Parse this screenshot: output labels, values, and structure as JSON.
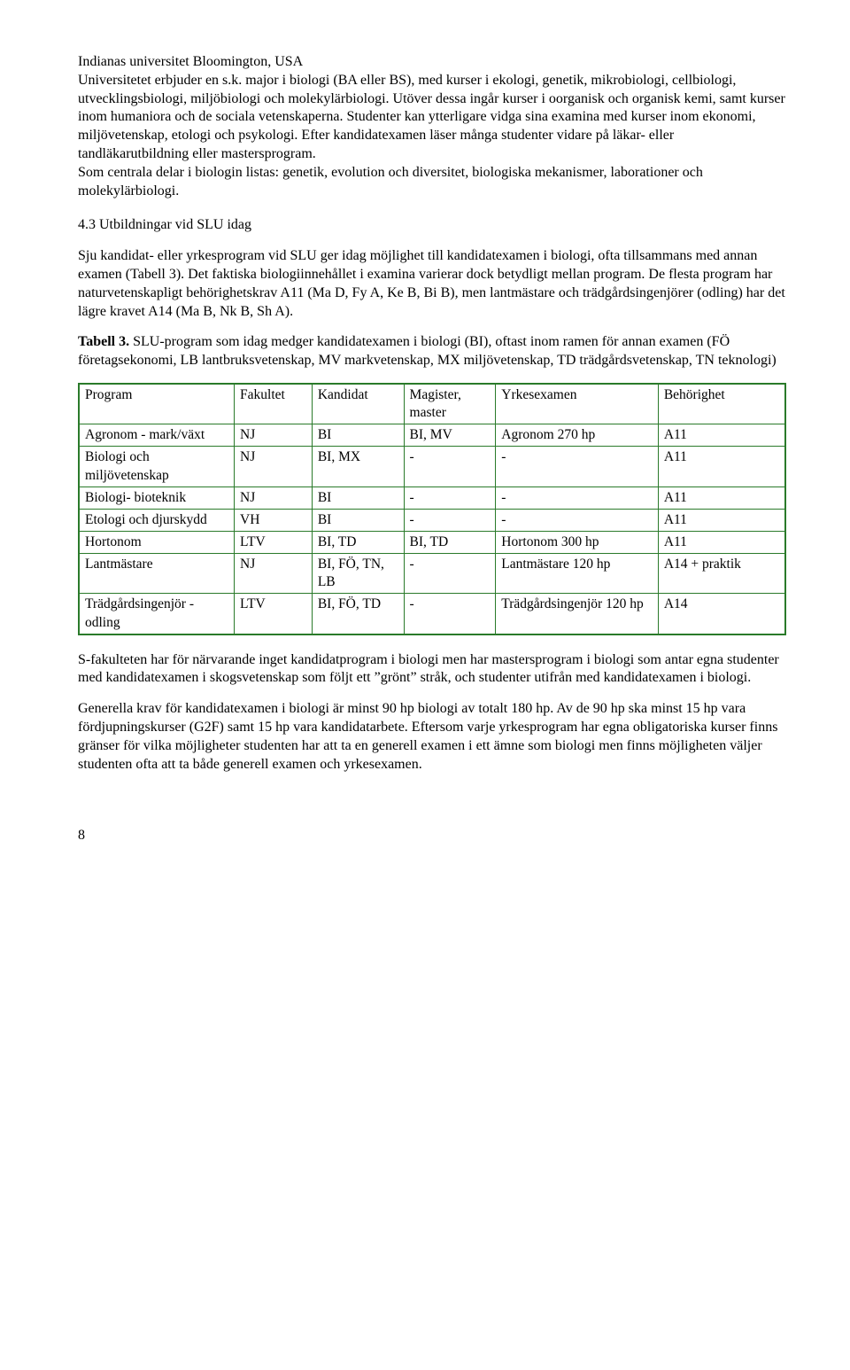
{
  "para1": "Indianas universitet Bloomington, USA\nUniversitetet erbjuder en s.k. major i biologi (BA eller BS), med kurser i ekologi, genetik, mikrobiologi, cellbiologi, utvecklingsbiologi, miljöbiologi och molekylärbiologi. Utöver dessa ingår kurser i oorganisk och organisk kemi, samt kurser inom humaniora och de sociala vetenskaperna. Studenter kan ytterligare vidga sina examina med kurser inom ekonomi, miljövetenskap, etologi och psykologi. Efter kandidatexamen läser många studenter vidare på läkar- eller tandläkarutbildning eller mastersprogram.\nSom centrala delar i biologin listas: genetik, evolution och diversitet, biologiska mekanismer, laborationer och molekylärbiologi.",
  "heading43": "4.3 Utbildningar vid SLU idag",
  "para2": "Sju kandidat- eller yrkesprogram vid SLU ger idag möjlighet till kandidatexamen i biologi, ofta tillsammans med annan examen (Tabell 3). Det faktiska biologiinnehållet i examina varierar dock betydligt mellan program. De flesta program har naturvetenskapligt behörighetskrav A11 (Ma D, Fy A, Ke B, Bi B), men lantmästare och trädgårdsingenjörer (odling) har det lägre kravet A14 (Ma B, Nk B, Sh A).",
  "table_caption_bold": "Tabell 3.",
  "table_caption_rest": " SLU-program som idag medger kandidatexamen i biologi (BI), oftast inom ramen för annan examen (FÖ företagsekonomi, LB lantbruksvetenskap, MV markvetenskap, MX miljövetenskap, TD trädgårdsvetenskap, TN teknologi)",
  "table": {
    "border_color": "#2a7a2a",
    "columns": [
      "Program",
      "Fakultet",
      "Kandidat",
      "Magister, master",
      "Yrkesexamen",
      "Behörighet"
    ],
    "col_widths_pct": [
      22,
      11,
      13,
      13,
      23,
      18
    ],
    "rows": [
      [
        "Agronom - mark/växt",
        "NJ",
        "BI",
        "BI, MV",
        "Agronom 270 hp",
        "A11"
      ],
      [
        "Biologi och miljövetenskap",
        "NJ",
        "BI, MX",
        "-",
        "-",
        "A11"
      ],
      [
        "Biologi- bioteknik",
        "NJ",
        "BI",
        "-",
        "-",
        "A11"
      ],
      [
        "Etologi och djurskydd",
        "VH",
        "BI",
        "-",
        "-",
        "A11"
      ],
      [
        "Hortonom",
        "LTV",
        "BI, TD",
        "BI, TD",
        "Hortonom 300 hp",
        "A11"
      ],
      [
        "Lantmästare",
        "NJ",
        "BI, FÖ, TN, LB",
        "-",
        "Lantmästare 120 hp",
        "A14 + praktik"
      ],
      [
        "Trädgårdsingenjör - odling",
        "LTV",
        "BI, FÖ, TD",
        "-",
        "Trädgårdsingenjör 120 hp",
        "A14"
      ]
    ]
  },
  "para3": "S-fakulteten har för närvarande inget kandidatprogram i biologi men har mastersprogram i biologi som antar egna studenter med kandidatexamen i skogsvetenskap som följt ett \"grönt\" stråk, och studenter utifrån med kandidatexamen i biologi.",
  "para4": "Generella krav för kandidatexamen i biologi är minst 90 hp biologi av totalt 180 hp. Av de 90 hp ska minst 15 hp vara fördjupningskurser (G2F) samt 15 hp vara kandidatarbete. Eftersom varje yrkesprogram har egna obligatoriska kurser finns gränser för vilka möjligheter studenten har att ta en generell examen i ett ämne som biologi men finns möjligheten väljer studenten ofta att ta både generell examen och yrkesexamen.",
  "page_number": "8"
}
